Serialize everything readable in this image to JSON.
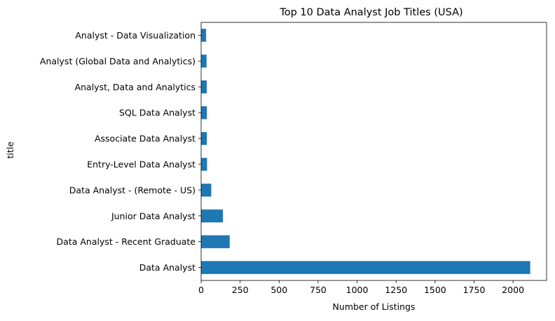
{
  "chart_data": {
    "type": "bar",
    "orientation": "horizontal",
    "title": "Top 10 Data Analyst Job Titles (USA)",
    "xlabel": "Number of Listings",
    "ylabel": "title",
    "categories": [
      "Data Analyst",
      "Data Analyst - Recent Graduate",
      "Junior Data Analyst",
      "Data Analyst - (Remote - US)",
      "Entry-Level Data Analyst",
      "Associate Data Analyst",
      "SQL Data Analyst",
      "Analyst, Data and Analytics",
      "Analyst (Global Data and Analytics)",
      "Analyst - Data Visualization"
    ],
    "values": [
      2110,
      183,
      140,
      65,
      38,
      37,
      37,
      36,
      35,
      32
    ],
    "xlim": [
      0,
      2215
    ],
    "xticks": [
      0,
      250,
      500,
      750,
      1000,
      1250,
      1500,
      1750,
      2000
    ],
    "bar_color": "#1f77b4",
    "grid": false,
    "legend": "none"
  }
}
